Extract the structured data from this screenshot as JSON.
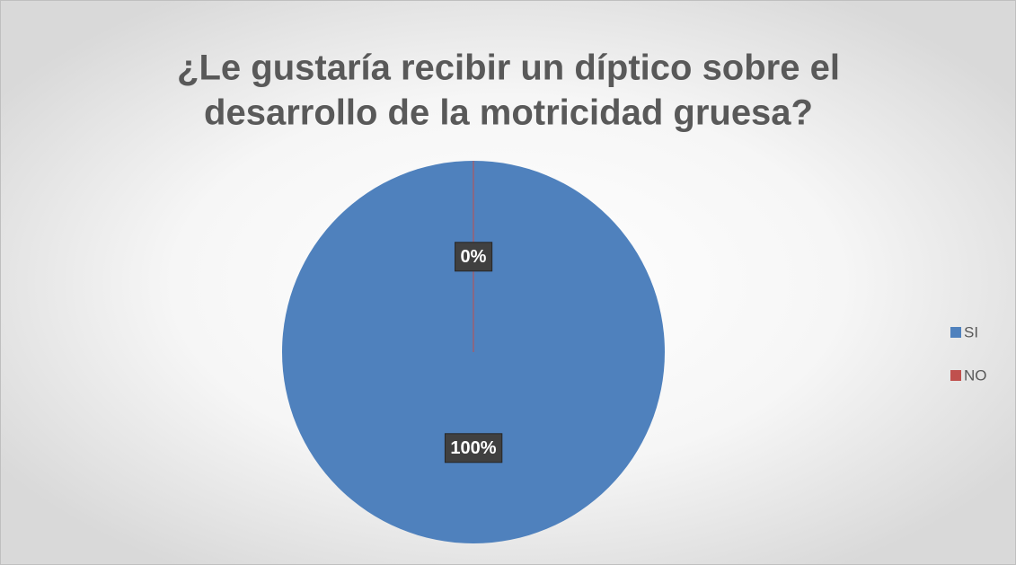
{
  "chart_data": {
    "type": "pie",
    "title": [
      "¿Le gustaría recibir un díptico sobre el",
      "desarrollo de la motricidad gruesa?"
    ],
    "categories": [
      "SI",
      "NO"
    ],
    "values": [
      100,
      0
    ],
    "value_labels": [
      "100%",
      "0%"
    ],
    "colors": [
      "#4f81bd",
      "#c0504d"
    ],
    "legend": "right"
  }
}
